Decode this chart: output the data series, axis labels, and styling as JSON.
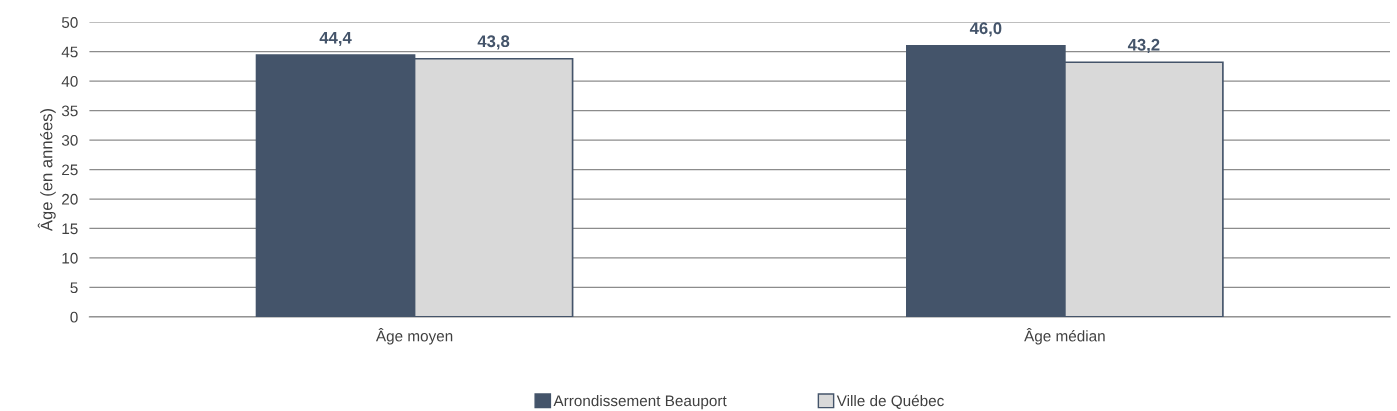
{
  "chart_data": {
    "type": "bar",
    "ylabel": "Âge (en années)",
    "categories": [
      "Âge moyen",
      "Âge médian"
    ],
    "series": [
      {
        "name": "Arrondissement Beauport",
        "color": "#44546a",
        "values": [
          44.4,
          46.0
        ],
        "value_labels": [
          "44,4",
          "46,0"
        ]
      },
      {
        "name": "Ville de Québec",
        "color": "#d9d9d9",
        "values": [
          43.8,
          43.2
        ],
        "value_labels": [
          "43,8",
          "43,2"
        ]
      }
    ],
    "ylim": [
      0,
      50
    ],
    "yticks": [
      0,
      5,
      10,
      15,
      20,
      25,
      30,
      35,
      40,
      45,
      50
    ],
    "grid": "y",
    "legend": "bottom"
  }
}
